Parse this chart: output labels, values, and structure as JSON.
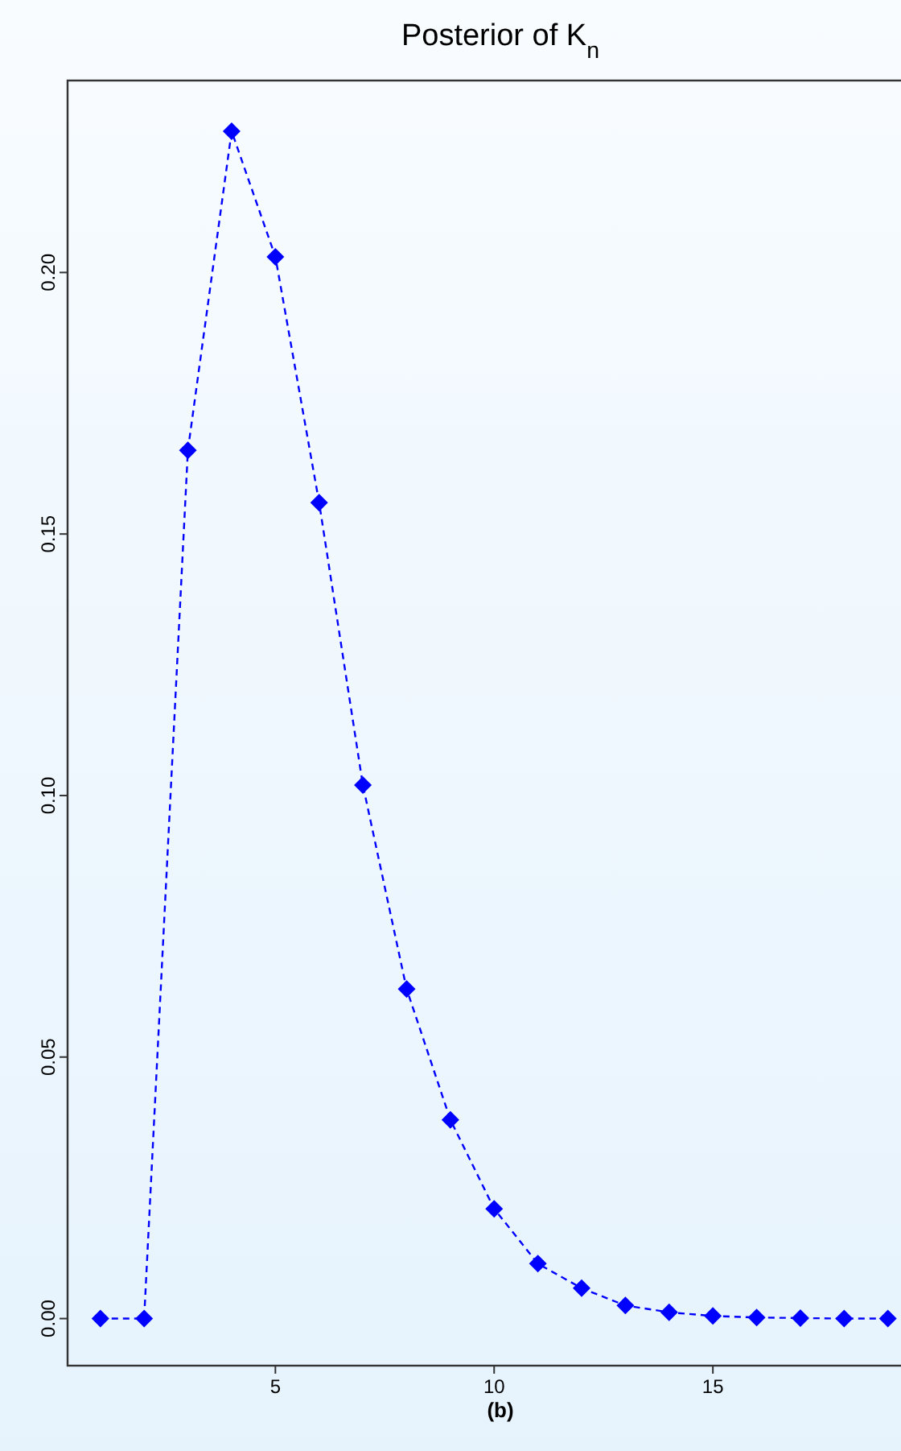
{
  "chart_data": {
    "type": "line",
    "title": "Posterior of K$_{n}$",
    "xlabel": "(b)",
    "x": [
      1,
      2,
      3,
      4,
      5,
      6,
      7,
      8,
      9,
      10,
      11,
      12,
      13,
      14,
      15,
      16,
      17,
      18,
      19
    ],
    "series": [
      {
        "color": "#0000ff",
        "values": [
          0,
          0,
          0.166,
          0.227,
          0.203,
          0.156,
          0.102,
          0.063,
          0.038,
          0.021,
          0.0105,
          0.0058,
          0.0025,
          0.0012,
          0.0005,
          0.0002,
          0.0001,
          0,
          0
        ]
      }
    ],
    "xlim": [
      0.25,
      19.3
    ],
    "ylim": [
      -0.009,
      0.2367
    ],
    "xticks": [
      5,
      10,
      15
    ],
    "yticks": [
      {
        "value": 0,
        "label": "0.00"
      },
      {
        "value": 0.05,
        "label": "0.05"
      },
      {
        "value": 0.1,
        "label": "0.10"
      },
      {
        "value": 0.15,
        "label": "0.15"
      },
      {
        "value": 0.2,
        "label": "0.20"
      }
    ],
    "marker": "diamond",
    "line_style": "dashed"
  }
}
